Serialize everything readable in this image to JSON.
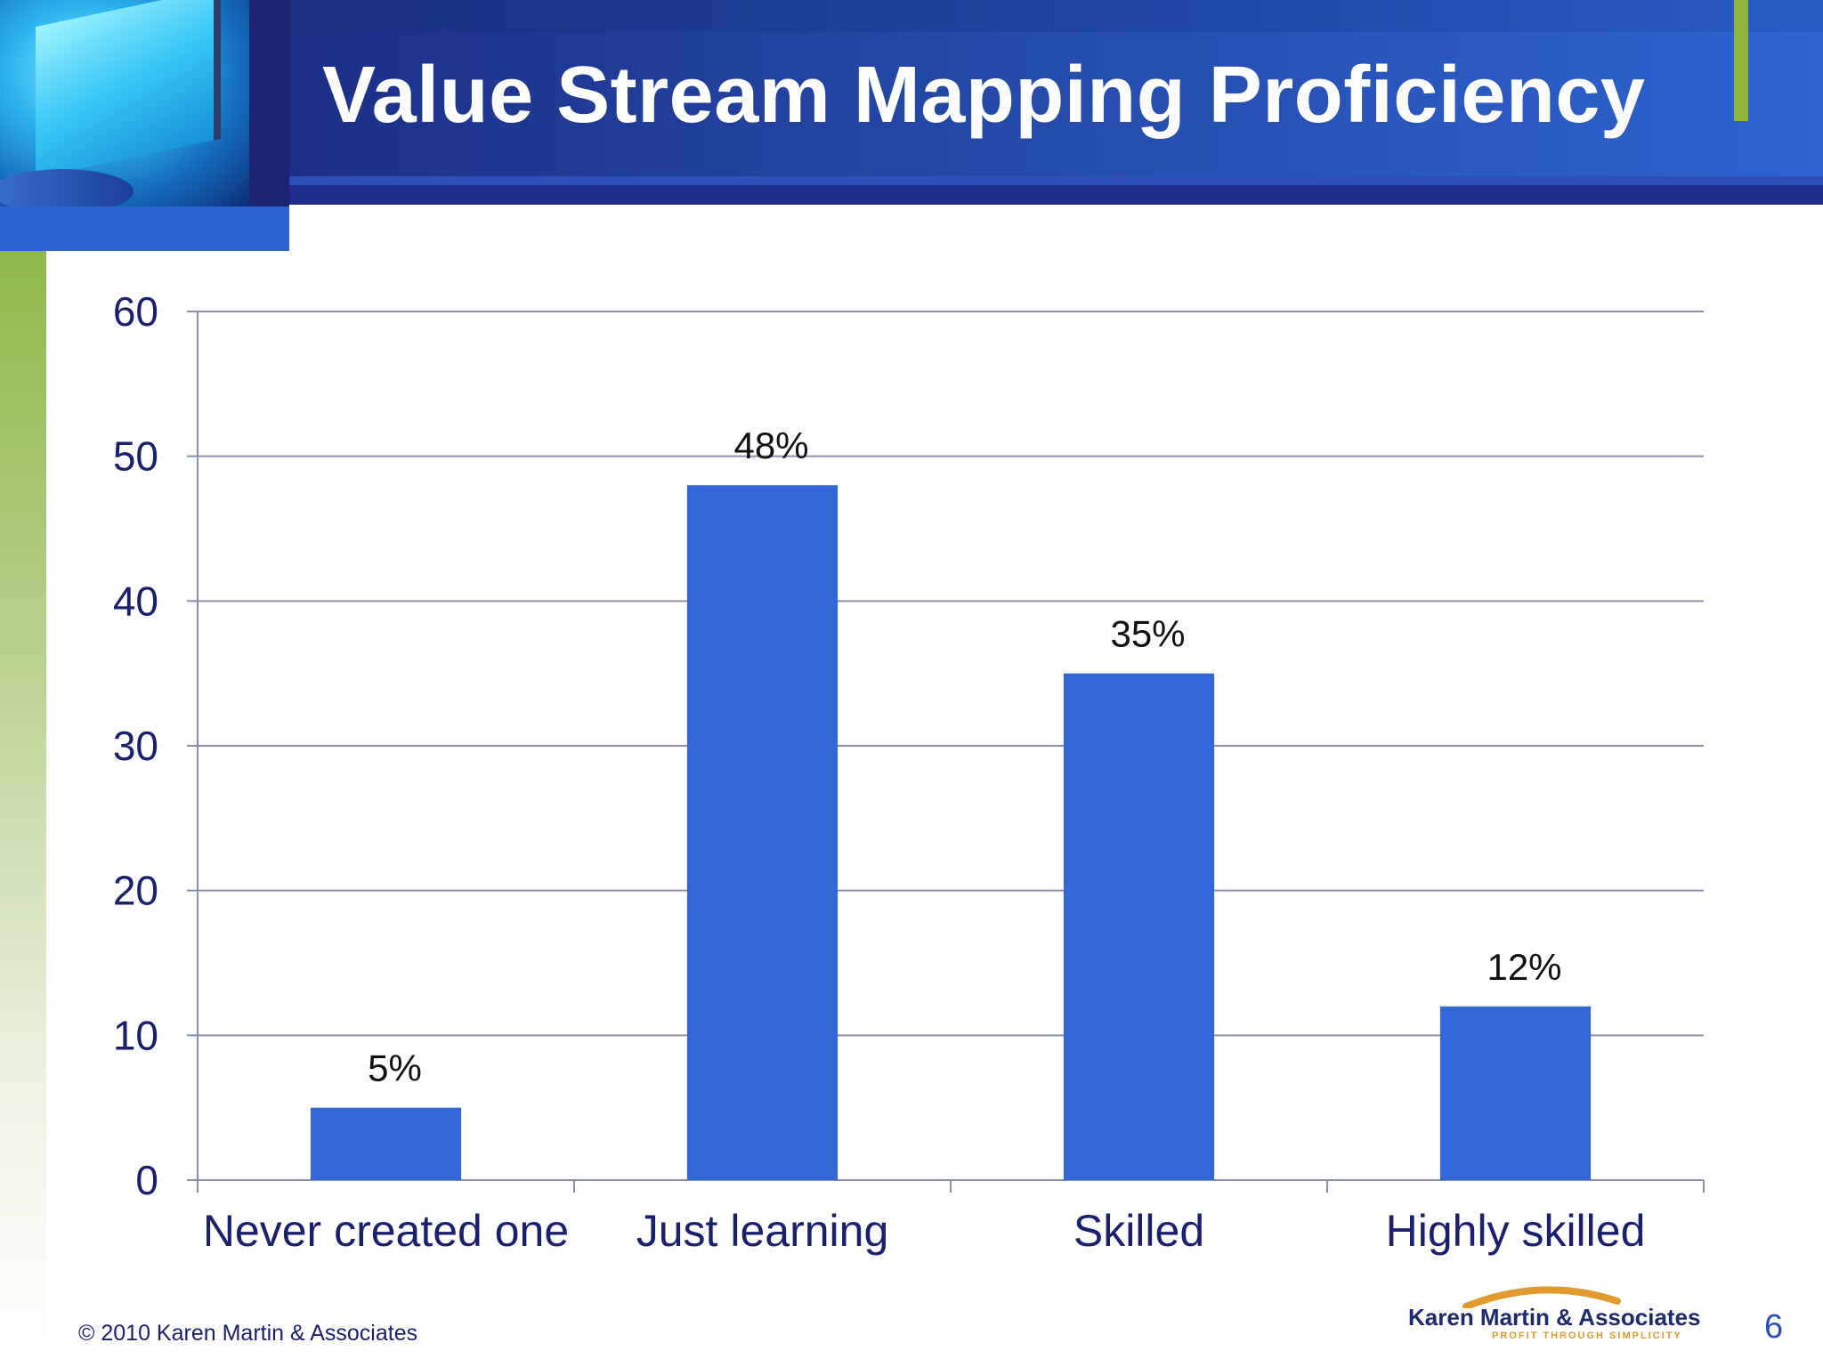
{
  "slide": {
    "title": "Value Stream Mapping Proficiency",
    "copyright": "© 2010 Karen Martin & Associates",
    "logo_text": "Karen Martin & Associates",
    "logo_tagline": "PROFIT THROUGH SIMPLICITY",
    "slide_number": "6"
  },
  "colors": {
    "bar": "#3366d6",
    "axis_text": "#1a1f6e",
    "gridline": "#8a8fa8",
    "title_bg": "#234aa8",
    "accent_green": "#8fb63a"
  },
  "chart_data": {
    "type": "bar",
    "categories": [
      "Never created one",
      "Just learning",
      "Skilled",
      "Highly skilled"
    ],
    "values": [
      5,
      48,
      35,
      12
    ],
    "data_labels": [
      "5%",
      "48%",
      "35%",
      "12%"
    ],
    "yticks": [
      "0",
      "10",
      "20",
      "30",
      "40",
      "50",
      "60"
    ],
    "ylim": [
      0,
      60
    ],
    "grid": true,
    "legend": "none",
    "title": "",
    "xlabel": "",
    "ylabel": ""
  }
}
